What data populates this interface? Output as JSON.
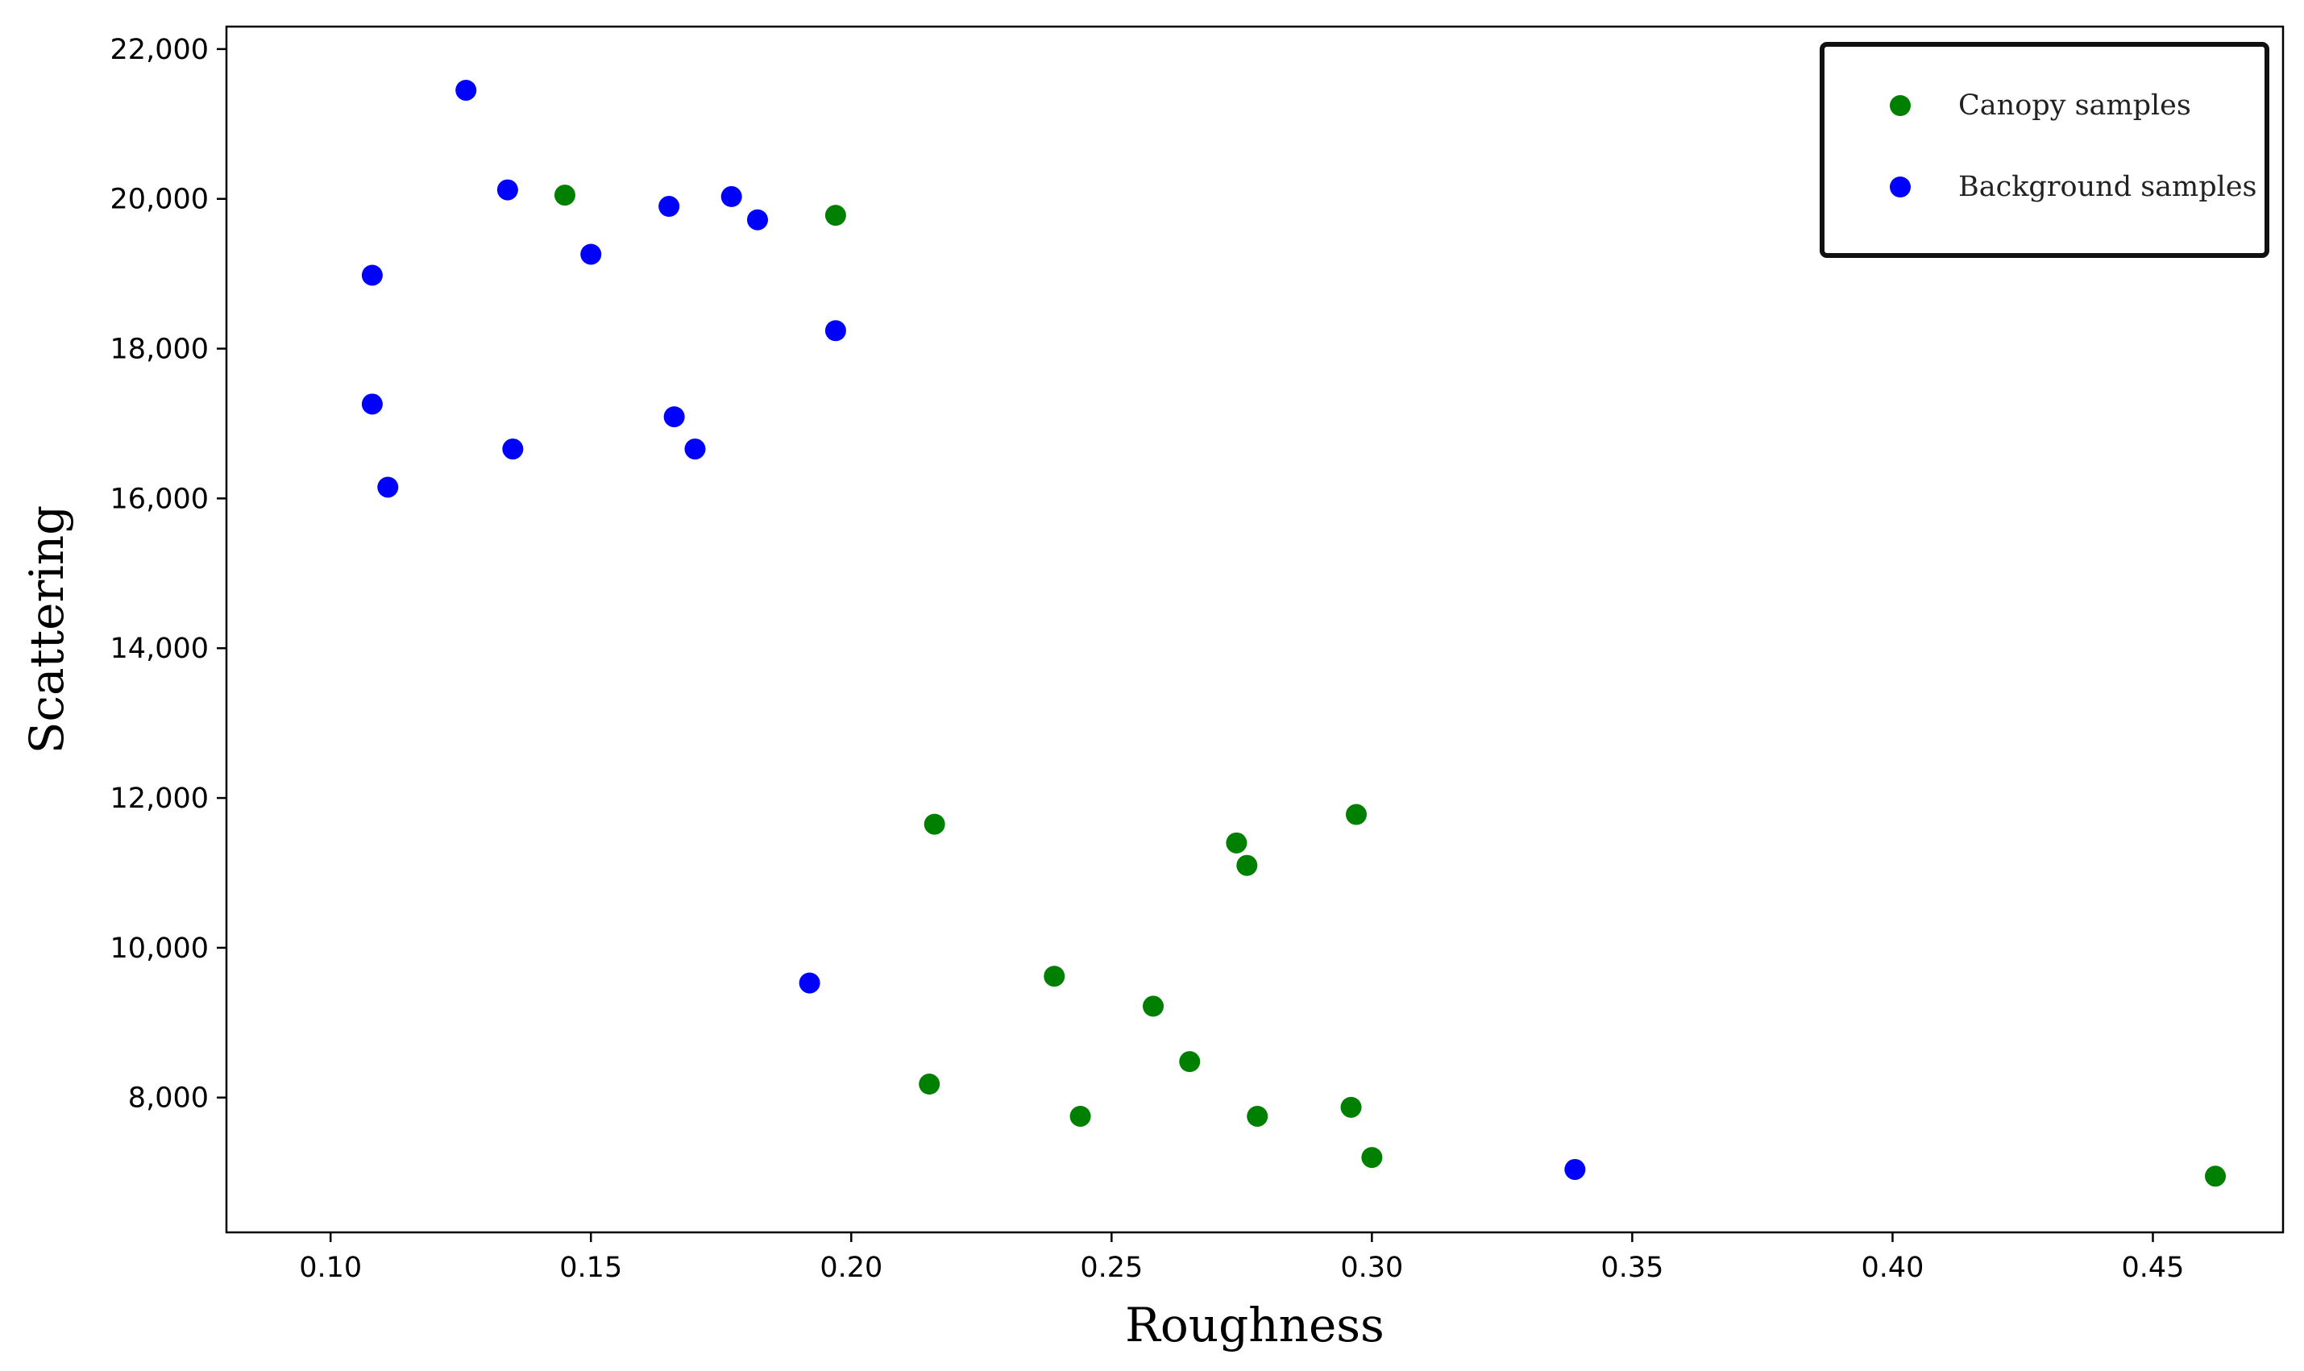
{
  "chart_data": {
    "type": "scatter",
    "title": "",
    "xlabel": "Roughness",
    "ylabel": "Scattering",
    "xlim": [
      0.08,
      0.475
    ],
    "ylim": [
      6200,
      22300
    ],
    "x_ticks": [
      0.1,
      0.15,
      0.2,
      0.25,
      0.3,
      0.35,
      0.4,
      0.45
    ],
    "x_tick_labels": [
      "0.10",
      "0.15",
      "0.20",
      "0.25",
      "0.30",
      "0.35",
      "0.40",
      "0.45"
    ],
    "y_ticks": [
      8000,
      10000,
      12000,
      14000,
      16000,
      18000,
      20000,
      22000
    ],
    "y_tick_labels": [
      "8,000",
      "10,000",
      "12,000",
      "14,000",
      "16,000",
      "18,000",
      "20,000",
      "22,000"
    ],
    "grid": false,
    "legend_position": "top-right",
    "series": [
      {
        "name": "Canopy samples",
        "color": "#008000",
        "points": [
          {
            "x": 0.145,
            "y": 20050
          },
          {
            "x": 0.197,
            "y": 19780
          },
          {
            "x": 0.216,
            "y": 11650
          },
          {
            "x": 0.297,
            "y": 11780
          },
          {
            "x": 0.274,
            "y": 11400
          },
          {
            "x": 0.276,
            "y": 11100
          },
          {
            "x": 0.239,
            "y": 9620
          },
          {
            "x": 0.258,
            "y": 9220
          },
          {
            "x": 0.265,
            "y": 8480
          },
          {
            "x": 0.215,
            "y": 8180
          },
          {
            "x": 0.244,
            "y": 7750
          },
          {
            "x": 0.278,
            "y": 7750
          },
          {
            "x": 0.296,
            "y": 7870
          },
          {
            "x": 0.3,
            "y": 7200
          },
          {
            "x": 0.462,
            "y": 6950
          }
        ]
      },
      {
        "name": "Background samples",
        "color": "#0000ff",
        "points": [
          {
            "x": 0.126,
            "y": 21450
          },
          {
            "x": 0.134,
            "y": 20120
          },
          {
            "x": 0.165,
            "y": 19900
          },
          {
            "x": 0.177,
            "y": 20030
          },
          {
            "x": 0.182,
            "y": 19720
          },
          {
            "x": 0.15,
            "y": 19260
          },
          {
            "x": 0.108,
            "y": 18980
          },
          {
            "x": 0.197,
            "y": 18240
          },
          {
            "x": 0.108,
            "y": 17260
          },
          {
            "x": 0.166,
            "y": 17090
          },
          {
            "x": 0.135,
            "y": 16660
          },
          {
            "x": 0.17,
            "y": 16660
          },
          {
            "x": 0.111,
            "y": 16150
          },
          {
            "x": 0.192,
            "y": 9530
          },
          {
            "x": 0.339,
            "y": 7040
          }
        ]
      }
    ]
  }
}
